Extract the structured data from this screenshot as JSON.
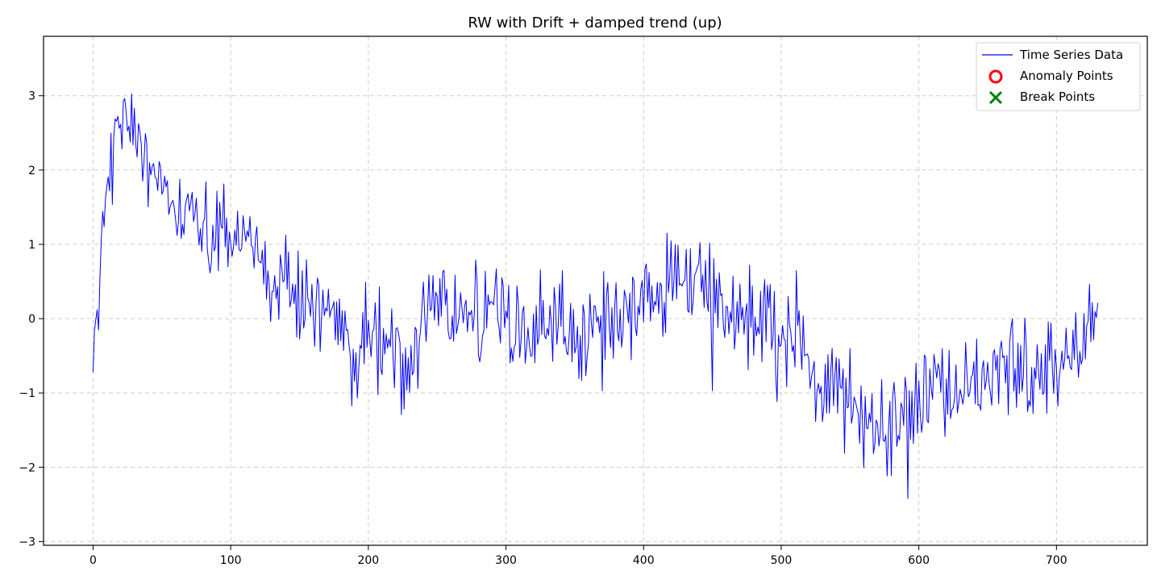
{
  "chart_data": {
    "type": "line",
    "title": "RW with Drift + damped trend (up)",
    "xlabel": "",
    "ylabel": "",
    "xlim": [
      -36,
      766
    ],
    "ylim": [
      -3.05,
      3.8
    ],
    "x_ticks": [
      0,
      100,
      200,
      300,
      400,
      500,
      600,
      700
    ],
    "y_ticks": [
      -3,
      -2,
      -1,
      0,
      1,
      2,
      3
    ],
    "grid": true,
    "legend_position": "top-right",
    "legend": [
      {
        "label": "Time Series Data",
        "marker": "line",
        "color": "#0000ff"
      },
      {
        "label": "Anomaly Points",
        "marker": "circle",
        "color": "#ff0000"
      },
      {
        "label": "Break Points",
        "marker": "x",
        "color": "#008000"
      }
    ],
    "series": [
      {
        "name": "Time Series Data",
        "color": "#0000ff",
        "x_start": 0,
        "x_step": 10,
        "values": [
          -0.72,
          2.05,
          2.55,
          2.65,
          2.2,
          1.6,
          1.35,
          1.25,
          1.2,
          1.05,
          0.95,
          1.05,
          0.75,
          0.5,
          0.4,
          0.25,
          0.25,
          0.1,
          -0.1,
          -0.65,
          -0.3,
          -0.35,
          -0.6,
          -0.55,
          0.1,
          0.35,
          0.2,
          0.1,
          0.1,
          0.2,
          0.15,
          -0.2,
          -0.3,
          -0.15,
          -0.05,
          -0.25,
          -0.2,
          0.0,
          0.05,
          0.05,
          0.15,
          0.2,
          0.5,
          0.55,
          0.45,
          0.35,
          0.1,
          0.0,
          -0.2,
          0.05,
          -0.2,
          -0.35,
          -0.65,
          -0.9,
          -1.1,
          -1.05,
          -1.3,
          -1.45,
          -1.55,
          -1.4,
          -1.25,
          -1.15,
          -1.1,
          -1.0,
          -0.8,
          -0.75,
          -0.65,
          -0.6,
          -0.7,
          -0.6,
          -0.5,
          -0.55,
          -0.35,
          0.21
        ],
        "anomalies": [],
        "breakpoints": []
      }
    ]
  }
}
